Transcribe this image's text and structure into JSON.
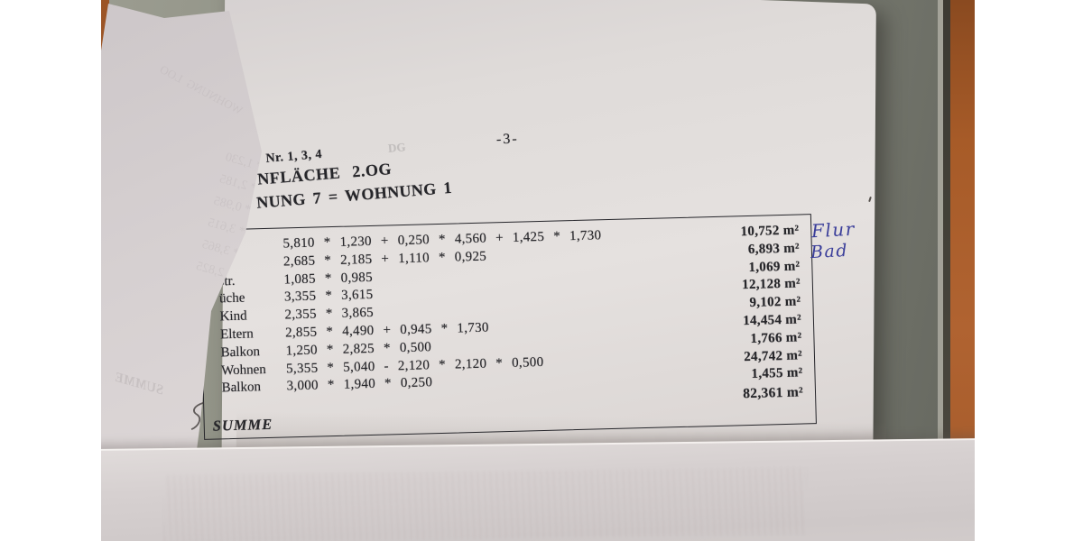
{
  "document": {
    "page_number": "-3-",
    "header_lines": [
      "Nr. 1, 3, 4",
      "NFLÄCHE  2.OG",
      "NUNG 7 = WOHNUNG 1"
    ],
    "table": {
      "rows": [
        {
          "label": "",
          "calc": "5,810 * 1,230 + 0,250 * 4,560 + 1,425 * 1,730",
          "result": "10,752 m²"
        },
        {
          "label": "",
          "calc": "2,685 * 2,185 + 1,110 * 0,925",
          "result": "6,893 m²"
        },
        {
          "label": "str.",
          "calc": "1,085 * 0,985",
          "result": "1,069 m²"
        },
        {
          "label": "üche",
          "calc": "3,355 * 3,615",
          "result": "12,128 m²"
        },
        {
          "label": "Kind",
          "calc": "2,355 * 3,865",
          "result": "9,102 m²"
        },
        {
          "label": "Eltern",
          "calc": "2,855 * 4,490 + 0,945 * 1,730",
          "result": "14,454 m²"
        },
        {
          "label": "Balkon",
          "calc": "1,250 * 2,825 * 0,500",
          "result": "1,766 m²"
        },
        {
          "label": "Wohnen",
          "calc": "5,355 * 5,040 - 2,120 * 2,120 * 0,500",
          "result": "24,742 m²"
        },
        {
          "label": "Balkon",
          "calc": "3,000 * 1,940 * 0,250",
          "result": "1,455 m²"
        }
      ],
      "summe_label": "SUMME",
      "total": "82,361 m²"
    },
    "handwritten_notes": [
      "Flur",
      "Bad"
    ]
  },
  "bleedthrough": {
    "header_ghost": "DG",
    "left_sheet_top": "WOHNUNG  LOO",
    "left_sheet_summe": "SUMME",
    "left_sheet_lines": [
      "5,840 * 1,230",
      "2,685 * 2,185",
      "1,085 * 0,985",
      "3,355 * 3,615",
      "2,355 * 3,865",
      "1,250 * 2,825"
    ]
  },
  "colors": {
    "desk": "#8b8d81",
    "wood_edge": "#a75b28",
    "paper": "#ded9d7",
    "ink": "#26262a",
    "handwriting_blue": "#3a3e9a"
  }
}
